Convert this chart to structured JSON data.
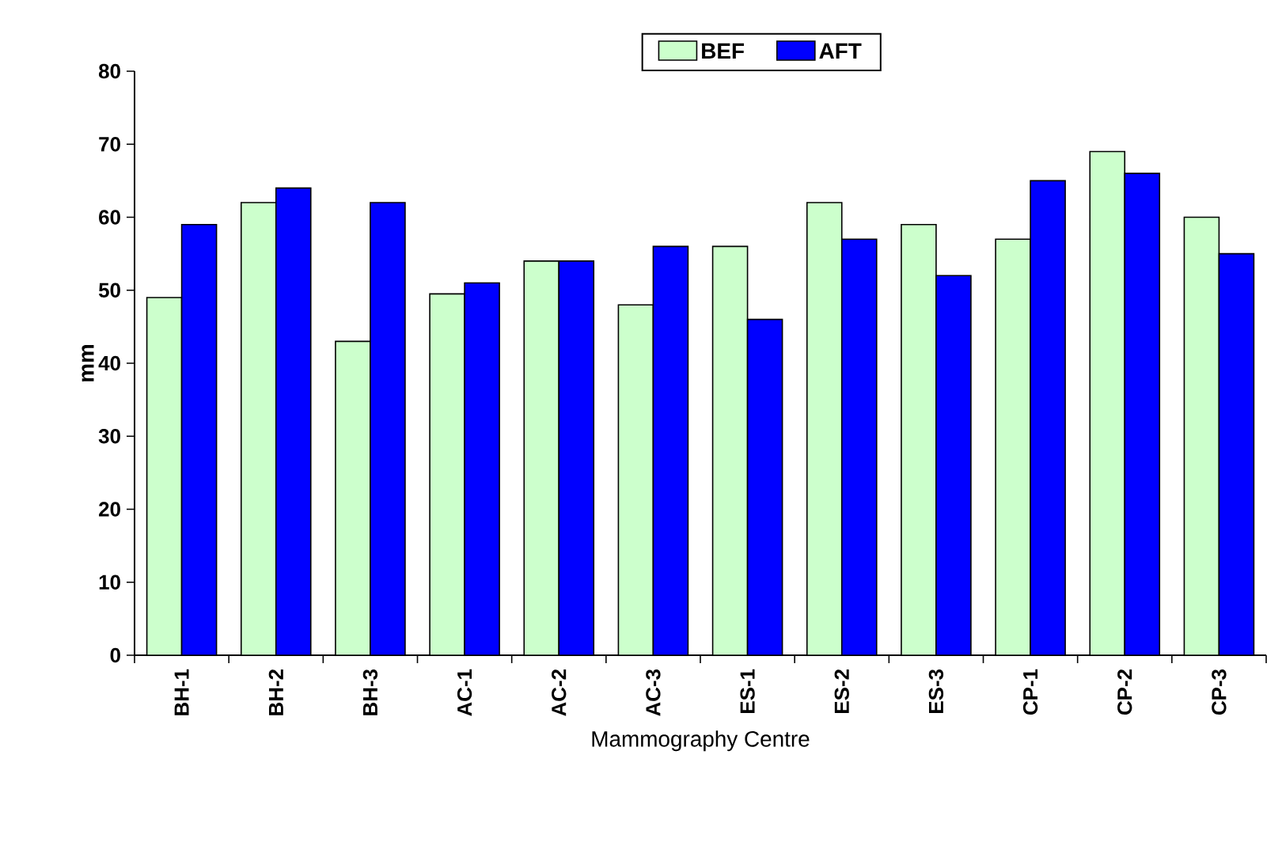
{
  "chart_data": {
    "type": "bar",
    "xlabel": "Mammography Centre",
    "ylabel": "mm",
    "categories": [
      "BH-1",
      "BH-2",
      "BH-3",
      "AC-1",
      "AC-2",
      "AC-3",
      "ES-1",
      "ES-2",
      "ES-3",
      "CP-1",
      "CP-2",
      "CP-3"
    ],
    "series": [
      {
        "name": "BEF",
        "color": "#ccffcc",
        "values": [
          49,
          62,
          43,
          49.5,
          54,
          48,
          56,
          62,
          59,
          57,
          69,
          60
        ]
      },
      {
        "name": "AFT",
        "color": "#0000ff",
        "values": [
          59,
          64,
          62,
          51,
          54,
          56,
          46,
          57,
          52,
          65,
          66,
          55
        ]
      }
    ],
    "ylim": [
      0,
      80
    ],
    "yticks": [
      0,
      10,
      20,
      30,
      40,
      50,
      60,
      70,
      80
    ],
    "legend": "top",
    "grid": false
  }
}
